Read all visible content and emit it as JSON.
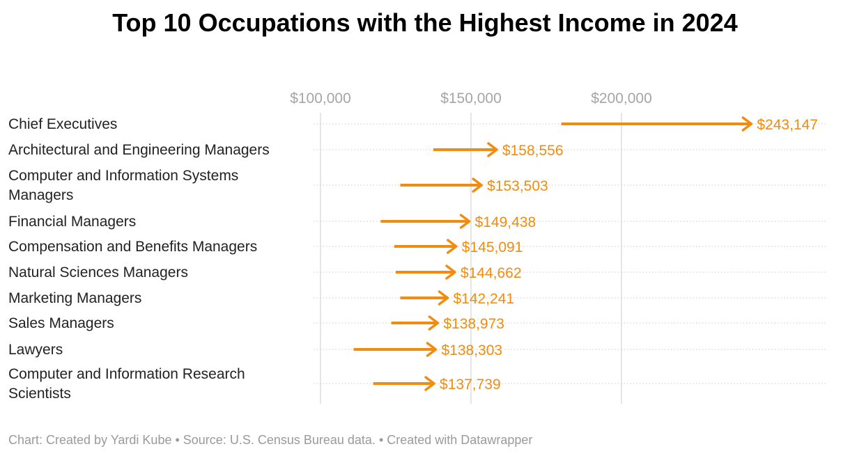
{
  "title": "Top 10 Occupations with the Highest Income in 2024",
  "footer": {
    "chart_credit": "Chart: Created by Yardi Kube",
    "source": "Source: U.S. Census Bureau data.",
    "tool": "Created with Datawrapper",
    "separator": " • "
  },
  "colors": {
    "accent": "#f28c0f",
    "gridline": "#dddddd",
    "tick_text": "#a5a5a5",
    "label_text": "#222222"
  },
  "chart_data": {
    "type": "arrow-range",
    "title": "Top 10 Occupations with the Highest Income in 2024",
    "xlim": [
      90000,
      260000
    ],
    "x_ticks": [
      100000,
      150000,
      200000
    ],
    "x_tick_labels": [
      "$100,000",
      "$150,000",
      "$200,000"
    ],
    "grid": true,
    "categories": [
      "Chief Executives",
      "Architectural and Engineering Managers",
      "Computer and Information Systems Managers",
      "Financial Managers",
      "Compensation and Benefits Managers",
      "Natural Sciences Managers",
      "Marketing Managers",
      "Sales Managers",
      "Lawyers",
      "Computer and Information Research Scientists"
    ],
    "start_values": [
      180000,
      137500,
      126500,
      120000,
      124500,
      125000,
      126500,
      123500,
      111000,
      117500
    ],
    "values": [
      243147,
      158556,
      153503,
      149438,
      145091,
      144662,
      142241,
      138973,
      138303,
      137739
    ],
    "value_labels": [
      "$243,147",
      "$158,556",
      "$153,503",
      "$149,438",
      "$145,091",
      "$144,662",
      "$142,241",
      "$138,973",
      "$138,303",
      "$137,739"
    ]
  }
}
